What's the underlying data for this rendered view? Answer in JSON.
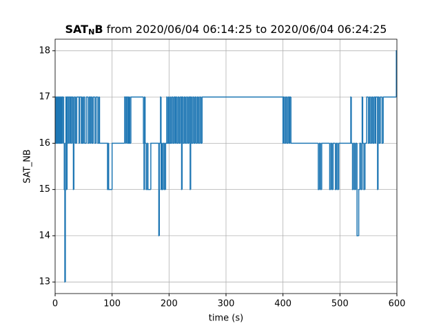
{
  "chart_data": {
    "type": "step",
    "title": [
      "SAT",
      "N",
      "B",
      " from 2020/06/04 06:14:25 to 2020/06/04 06:24:25"
    ],
    "xlabel": "time (s)",
    "ylabel": "SAT_NB",
    "xlim": [
      0,
      600
    ],
    "ylim": [
      12.75,
      18.25
    ],
    "xticks": [
      0,
      100,
      200,
      300,
      400,
      500,
      600
    ],
    "yticks": [
      13,
      14,
      15,
      16,
      17,
      18
    ],
    "grid": true,
    "color": "#1f77b4",
    "x": [
      0,
      1,
      2,
      3,
      4,
      5,
      6,
      7,
      8,
      9,
      10,
      11,
      12,
      13,
      15,
      16,
      17,
      18,
      19,
      20,
      21,
      23,
      24,
      26,
      27,
      29,
      30,
      32,
      33,
      34,
      36,
      38,
      42,
      43,
      46,
      47,
      48,
      50,
      52,
      55,
      58,
      60,
      62,
      63,
      65,
      67,
      70,
      72,
      75,
      77,
      78,
      92,
      93,
      94,
      100,
      122,
      124,
      125,
      127,
      128,
      129,
      130,
      131,
      133,
      155,
      156,
      157,
      158,
      160,
      162,
      163,
      168,
      182,
      183,
      185,
      186,
      187,
      188,
      190,
      192,
      194,
      196,
      197,
      199,
      200,
      202,
      203,
      205,
      207,
      209,
      211,
      212,
      214,
      216,
      218,
      220,
      222,
      223,
      225,
      227,
      229,
      231,
      233,
      235,
      237,
      238,
      240,
      242,
      244,
      246,
      248,
      250,
      252,
      254,
      256,
      258,
      400,
      401,
      403,
      405,
      407,
      409,
      411,
      412,
      414,
      462,
      464,
      466,
      468,
      482,
      484,
      486,
      488,
      492,
      494,
      496,
      498,
      519,
      520,
      522,
      524,
      526,
      528,
      530,
      533,
      535,
      537,
      539,
      540,
      542,
      544,
      547,
      550,
      552,
      554,
      556,
      558,
      560,
      562,
      563,
      566,
      567,
      569,
      571,
      574,
      576,
      599,
      600
    ],
    "values": [
      16,
      17,
      16,
      17,
      16,
      17,
      16,
      17,
      16,
      17,
      16,
      17,
      16,
      17,
      16,
      15,
      13,
      16,
      17,
      15,
      17,
      16,
      17,
      16,
      17,
      16,
      17,
      15,
      16,
      17,
      16,
      17,
      16,
      17,
      16,
      17,
      16,
      17,
      16,
      17,
      16,
      17,
      16,
      17,
      16,
      17,
      16,
      17,
      16,
      17,
      16,
      15,
      16,
      15,
      16,
      17,
      16,
      17,
      16,
      17,
      16,
      17,
      16,
      17,
      16,
      15,
      17,
      16,
      15,
      16,
      15,
      16,
      14,
      16,
      17,
      15,
      16,
      15,
      16,
      15,
      16,
      17,
      16,
      17,
      16,
      17,
      16,
      17,
      16,
      17,
      16,
      17,
      16,
      17,
      16,
      17,
      15,
      17,
      16,
      17,
      16,
      17,
      16,
      17,
      15,
      17,
      16,
      17,
      16,
      17,
      16,
      17,
      16,
      17,
      16,
      17,
      16,
      17,
      16,
      17,
      16,
      17,
      16,
      17,
      16,
      15,
      16,
      15,
      16,
      15,
      16,
      15,
      16,
      15,
      16,
      15,
      16,
      17,
      16,
      15,
      16,
      15,
      16,
      14,
      15,
      16,
      15,
      17,
      16,
      15,
      16,
      17,
      16,
      17,
      16,
      17,
      16,
      17,
      16,
      17,
      15,
      17,
      16,
      17,
      16,
      17,
      18,
      18
    ]
  }
}
